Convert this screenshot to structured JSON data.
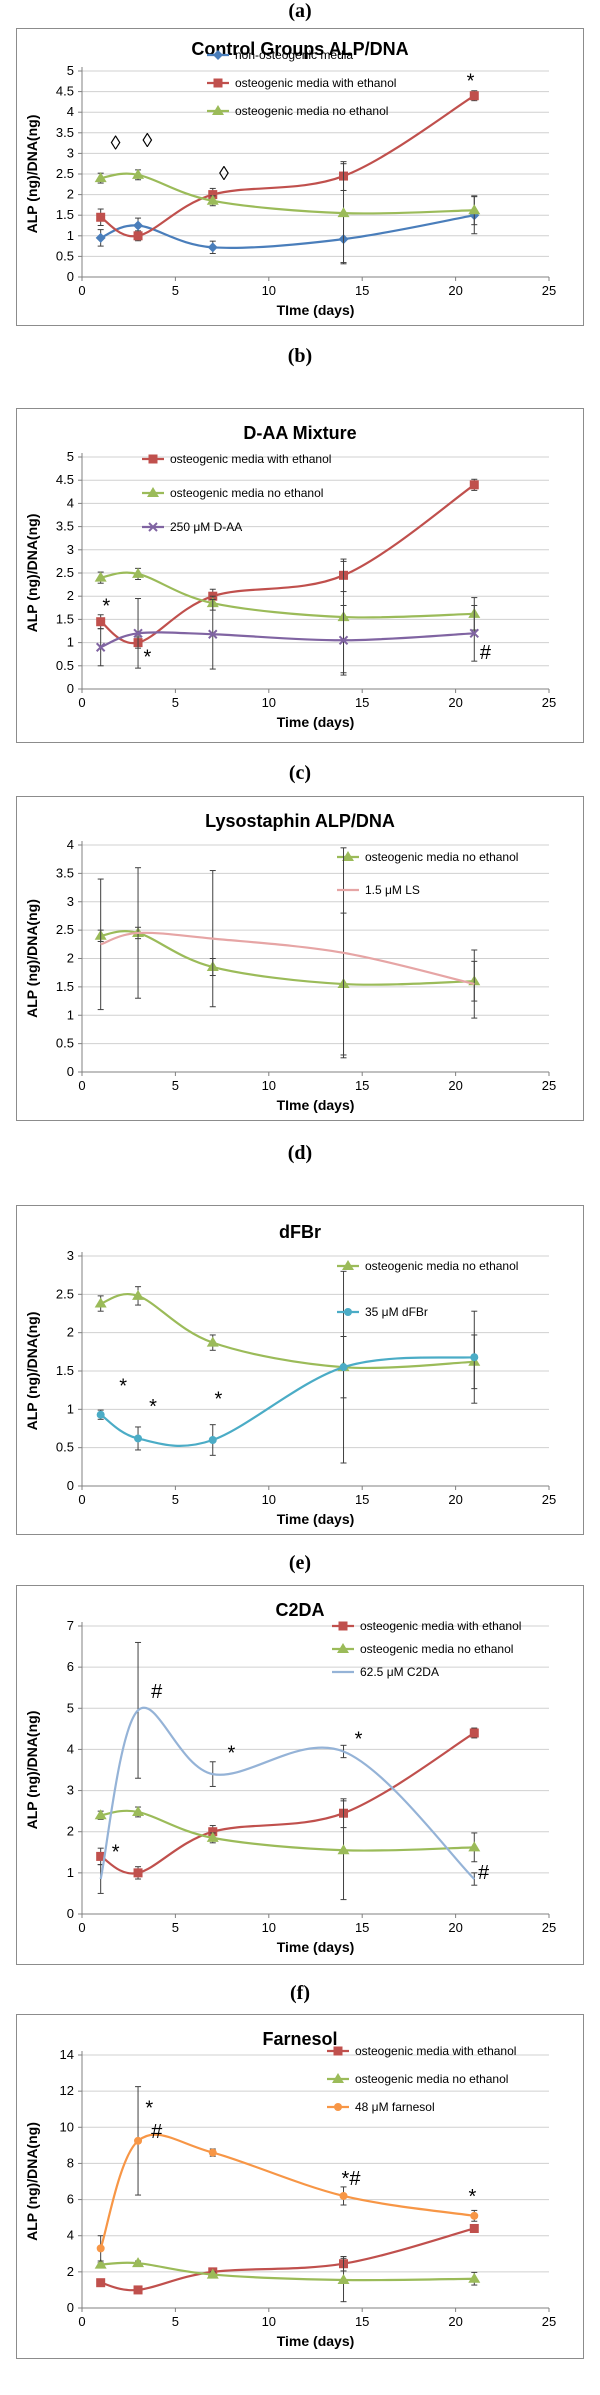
{
  "panels": [
    {
      "letter": "(a)"
    },
    {
      "letter": "(b)"
    },
    {
      "letter": "(c)"
    },
    {
      "letter": "(d)"
    },
    {
      "letter": "(e)"
    },
    {
      "letter": "(f)"
    }
  ],
  "chart_data": [
    {
      "type": "line",
      "title": "Control Groups ALP/DNA",
      "xlabel": "TIme (days)",
      "ylabel": "ALP (ng)/DNA(ng)",
      "xlim": [
        0,
        25
      ],
      "xticks": [
        0,
        5,
        10,
        15,
        20,
        25
      ],
      "ylim": [
        0,
        5
      ],
      "yticks": [
        0,
        0.5,
        1,
        1.5,
        2,
        2.5,
        3,
        3.5,
        4,
        4.5,
        5
      ],
      "grid": true,
      "legend_position": "top-center",
      "series": [
        {
          "name": "non-osteogenic media",
          "color": "#4a7ebb",
          "marker": "diamond",
          "x": [
            1,
            3,
            7,
            14,
            21
          ],
          "y": [
            0.95,
            1.25,
            0.72,
            0.92,
            1.5
          ],
          "err": [
            0.2,
            0.18,
            0.15,
            0.6,
            0.45
          ]
        },
        {
          "name": "osteogenic media with ethanol",
          "color": "#c0504d",
          "marker": "square",
          "x": [
            1,
            3,
            7,
            14,
            21
          ],
          "y": [
            1.45,
            1.0,
            2.0,
            2.45,
            4.4
          ],
          "err": [
            0.2,
            0.12,
            0.15,
            0.35,
            0.12
          ]
        },
        {
          "name": "osteogenic media no ethanol",
          "color": "#9bbb59",
          "marker": "triangle",
          "x": [
            1,
            3,
            7,
            14,
            21
          ],
          "y": [
            2.4,
            2.48,
            1.85,
            1.55,
            1.62
          ],
          "err": [
            0.12,
            0.12,
            0.12,
            1.2,
            0.35
          ]
        }
      ],
      "annotations": [
        {
          "text": "◊",
          "x": 1.8,
          "y": 3.1
        },
        {
          "text": "◊",
          "x": 3.5,
          "y": 3.15
        },
        {
          "text": "◊",
          "x": 7.6,
          "y": 2.35
        },
        {
          "text": "*",
          "x": 20.8,
          "y": 4.6
        }
      ]
    },
    {
      "type": "line",
      "title": "D-AA Mixture",
      "xlabel": "Time  (days)",
      "ylabel": "ALP (ng)/DNA(ng)",
      "xlim": [
        0,
        25
      ],
      "xticks": [
        0,
        5,
        10,
        15,
        20,
        25
      ],
      "ylim": [
        0,
        5
      ],
      "yticks": [
        0,
        0.5,
        1,
        1.5,
        2,
        2.5,
        3,
        3.5,
        4,
        4.5,
        5
      ],
      "grid": true,
      "legend_position": "top-left",
      "series": [
        {
          "name": "osteogenic media with ethanol",
          "color": "#c0504d",
          "marker": "square",
          "x": [
            1,
            3,
            7,
            14,
            21
          ],
          "y": [
            1.45,
            1.0,
            2.0,
            2.45,
            4.4
          ],
          "err": [
            0.15,
            0.12,
            0.15,
            0.35,
            0.12
          ]
        },
        {
          "name": "osteogenic media no ethanol",
          "color": "#9bbb59",
          "marker": "triangle",
          "x": [
            1,
            3,
            7,
            14,
            21
          ],
          "y": [
            2.4,
            2.48,
            1.85,
            1.55,
            1.62
          ],
          "err": [
            0.12,
            0.12,
            0.15,
            1.2,
            0.35
          ]
        },
        {
          "name": "250 μM D-AA",
          "color": "#8064a2",
          "marker": "x",
          "x": [
            1,
            3,
            7,
            14,
            21
          ],
          "y": [
            0.9,
            1.2,
            1.18,
            1.05,
            1.2
          ],
          "err": [
            0.4,
            0.75,
            0.75,
            0.75,
            0.6
          ]
        }
      ],
      "annotations": [
        {
          "text": "*",
          "x": 1.3,
          "y": 1.65
        },
        {
          "text": "*",
          "x": 3.5,
          "y": 0.55
        },
        {
          "text": "#",
          "x": 21.6,
          "y": 0.65
        }
      ]
    },
    {
      "type": "line",
      "title": "Lysostaphin ALP/DNA",
      "xlabel": "TIme (days)",
      "ylabel": "ALP (ng)/DNA(ng)",
      "xlim": [
        0,
        25
      ],
      "xticks": [
        0,
        5,
        10,
        15,
        20,
        25
      ],
      "ylim": [
        0,
        4
      ],
      "yticks": [
        0,
        0.5,
        1,
        1.5,
        2,
        2.5,
        3,
        3.5,
        4
      ],
      "grid": true,
      "legend_position": "top-right",
      "series": [
        {
          "name": "osteogenic media no ethanol",
          "color": "#9bbb59",
          "marker": "triangle",
          "x": [
            1,
            3,
            7,
            14,
            21
          ],
          "y": [
            2.4,
            2.45,
            1.85,
            1.55,
            1.6
          ],
          "err": [
            0.1,
            0.1,
            0.15,
            1.25,
            0.35
          ]
        },
        {
          "name": "1.5 μM LS",
          "color": "#e6a5a5",
          "marker": "none",
          "x": [
            1,
            3,
            7,
            14,
            21
          ],
          "y": [
            2.25,
            2.45,
            2.35,
            2.1,
            1.55
          ],
          "err": [
            1.15,
            1.15,
            1.2,
            1.85,
            0.6
          ]
        }
      ],
      "annotations": []
    },
    {
      "type": "line",
      "title": "dFBr",
      "xlabel": "Time (days)",
      "ylabel": "ALP (ng)/DNA(ng)",
      "xlim": [
        0,
        25
      ],
      "xticks": [
        0,
        5,
        10,
        15,
        20,
        25
      ],
      "ylim": [
        0,
        3
      ],
      "yticks": [
        0,
        0.5,
        1,
        1.5,
        2,
        2.5,
        3
      ],
      "grid": true,
      "legend_position": "top-right",
      "series": [
        {
          "name": "osteogenic media no ethanol",
          "color": "#9bbb59",
          "marker": "triangle",
          "x": [
            1,
            3,
            7,
            14,
            21
          ],
          "y": [
            2.38,
            2.48,
            1.87,
            1.55,
            1.62
          ],
          "err": [
            0.1,
            0.12,
            0.1,
            1.25,
            0.35
          ]
        },
        {
          "name": "35 μM dFBr",
          "color": "#4bacc6",
          "marker": "circle",
          "x": [
            1,
            3,
            7,
            14,
            21
          ],
          "y": [
            0.93,
            0.62,
            0.6,
            1.55,
            1.68
          ],
          "err": [
            0.06,
            0.15,
            0.2,
            0.4,
            0.6
          ]
        }
      ],
      "annotations": [
        {
          "text": "*",
          "x": 2.2,
          "y": 1.22
        },
        {
          "text": "*",
          "x": 3.8,
          "y": 0.95
        },
        {
          "text": "*",
          "x": 7.3,
          "y": 1.05
        }
      ]
    },
    {
      "type": "line",
      "title": "C2DA",
      "xlabel": "Time (days)",
      "ylabel": "ALP (ng)/DNA(ng)",
      "xlim": [
        0,
        25
      ],
      "xticks": [
        0,
        5,
        10,
        15,
        20,
        25
      ],
      "ylim": [
        0,
        7
      ],
      "yticks": [
        0,
        1,
        2,
        3,
        4,
        5,
        6,
        7
      ],
      "grid": true,
      "legend_position": "top-right",
      "series": [
        {
          "name": "osteogenic media with ethanol",
          "color": "#c0504d",
          "marker": "square",
          "x": [
            1,
            3,
            7,
            14,
            21
          ],
          "y": [
            1.4,
            1.0,
            2.0,
            2.45,
            4.4
          ],
          "err": [
            0.2,
            0.15,
            0.15,
            0.35,
            0.12
          ]
        },
        {
          "name": "osteogenic media no ethanol",
          "color": "#9bbb59",
          "marker": "triangle",
          "x": [
            1,
            3,
            7,
            14,
            21
          ],
          "y": [
            2.4,
            2.48,
            1.85,
            1.55,
            1.62
          ],
          "err": [
            0.1,
            0.12,
            0.12,
            1.2,
            0.35
          ]
        },
        {
          "name": "62.5 μM C2DA",
          "color": "#95b3d7",
          "marker": "none",
          "x": [
            1,
            3,
            7,
            14,
            21
          ],
          "y": [
            0.85,
            4.95,
            3.4,
            3.95,
            0.85
          ],
          "err": [
            0.35,
            1.65,
            0.3,
            0.15,
            0.15
          ]
        }
      ],
      "annotations": [
        {
          "text": "*",
          "x": 1.8,
          "y": 1.35
        },
        {
          "text": "#",
          "x": 4.0,
          "y": 5.25
        },
        {
          "text": "*",
          "x": 8.0,
          "y": 3.75
        },
        {
          "text": "*",
          "x": 14.8,
          "y": 4.1
        },
        {
          "text": "#",
          "x": 21.5,
          "y": 0.85
        }
      ]
    },
    {
      "type": "line",
      "title": "Farnesol",
      "xlabel": "Time (days)",
      "ylabel": "ALP (ng)/DNA(ng)",
      "xlim": [
        0,
        25
      ],
      "xticks": [
        0,
        5,
        10,
        15,
        20,
        25
      ],
      "ylim": [
        0,
        14
      ],
      "yticks": [
        0,
        2,
        4,
        6,
        8,
        10,
        12,
        14
      ],
      "grid": true,
      "legend_position": "top-right",
      "series": [
        {
          "name": "osteogenic media with ethanol",
          "color": "#c0504d",
          "marker": "square",
          "x": [
            1,
            3,
            7,
            14,
            21
          ],
          "y": [
            1.4,
            1.0,
            2.0,
            2.45,
            4.4
          ],
          "err": [
            0.2,
            0.15,
            0.2,
            0.4,
            0.2
          ]
        },
        {
          "name": "osteogenic media no ethanol",
          "color": "#9bbb59",
          "marker": "triangle",
          "x": [
            1,
            3,
            7,
            14,
            21
          ],
          "y": [
            2.4,
            2.48,
            1.85,
            1.55,
            1.62
          ],
          "err": [
            0.1,
            0.12,
            0.15,
            1.2,
            0.35
          ]
        },
        {
          "name": "48 μM farnesol",
          "color": "#f79646",
          "marker": "circle",
          "x": [
            1,
            3,
            7,
            14,
            21
          ],
          "y": [
            3.3,
            9.25,
            8.6,
            6.2,
            5.1
          ],
          "err": [
            0.7,
            3.0,
            0.2,
            0.5,
            0.3
          ]
        }
      ],
      "annotations": [
        {
          "text": "*",
          "x": 3.6,
          "y": 10.7
        },
        {
          "text": "#",
          "x": 4.0,
          "y": 9.4
        },
        {
          "text": "*#",
          "x": 14.4,
          "y": 6.8
        },
        {
          "text": "*",
          "x": 20.9,
          "y": 5.8
        }
      ]
    }
  ]
}
